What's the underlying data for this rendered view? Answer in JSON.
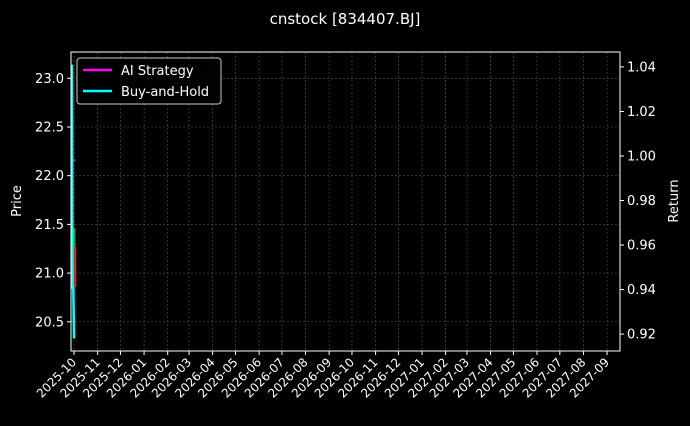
{
  "chart_data": {
    "type": "line",
    "title": "cnstock [834407.BJ]",
    "ylabel_left": "Price",
    "ylabel_right": "Return",
    "xlabel": "",
    "xlim": [
      "2025-09-27",
      "2027-09-18"
    ],
    "ylim_left": [
      20.2,
      23.27
    ],
    "ylim_right": [
      0.9124,
      1.0467
    ],
    "grid": true,
    "legend_position": "top-left",
    "x_ticks": [
      "2025-10",
      "2025-11",
      "2025-12",
      "2026-01",
      "2026-02",
      "2026-03",
      "2026-04",
      "2026-05",
      "2026-06",
      "2026-07",
      "2026-08",
      "2026-09",
      "2026-10",
      "2026-11",
      "2026-12",
      "2027-01",
      "2027-02",
      "2027-03",
      "2027-04",
      "2027-05",
      "2027-06",
      "2027-07",
      "2027-08",
      "2027-09"
    ],
    "y_ticks_left": [
      "20.5",
      "21.0",
      "21.5",
      "22.0",
      "22.5",
      "23.0"
    ],
    "y_ticks_right": [
      "0.92",
      "0.94",
      "0.96",
      "0.98",
      "1.00",
      "1.02",
      "1.04"
    ],
    "candles": [
      {
        "date": "2025-10-01",
        "open": 21.0,
        "close": 21.46,
        "high": 21.46,
        "low": 21.0,
        "color": "#2ca02c"
      },
      {
        "date": "2025-10-02",
        "open": 21.27,
        "close": 20.86,
        "high": 21.27,
        "low": 20.86,
        "color": "#d62728"
      }
    ],
    "series": [
      {
        "name": "AI Strategy",
        "color": "#ff00ff",
        "axis": "right",
        "x": [
          "2025-09-28",
          "2025-09-29",
          "2025-09-30",
          "2025-10-01",
          "2025-10-02"
        ],
        "values": [
          0.998,
          0.998,
          0.998,
          0.998,
          0.998
        ]
      },
      {
        "name": "Buy-and-Hold",
        "color": "#00ffff",
        "axis": "right",
        "x": [
          "2025-09-28",
          "2025-09-29",
          "2025-09-30",
          "2025-10-01"
        ],
        "values": [
          1.041,
          0.941,
          0.941,
          0.918
        ]
      }
    ]
  }
}
